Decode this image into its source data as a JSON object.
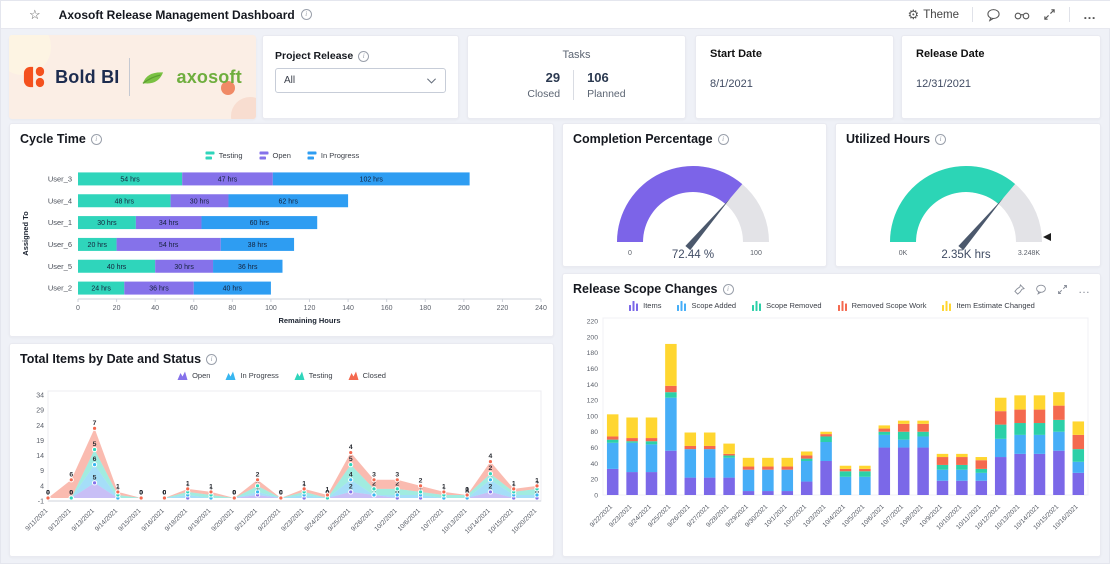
{
  "topbar": {
    "title": "Axosoft Release Management Dashboard",
    "theme_label": "Theme"
  },
  "logo": {
    "boldbi_text": "Bold BI",
    "axosoft_text": "axosoft"
  },
  "filters": {
    "project_release_label": "Project Release",
    "project_release_value": "All"
  },
  "kpis": {
    "tasks": {
      "title": "Tasks",
      "closed_value": "29",
      "closed_label": "Closed",
      "planned_value": "106",
      "planned_label": "Planned"
    },
    "start_date": {
      "label": "Start Date",
      "value": "8/1/2021"
    },
    "release_date": {
      "label": "Release Date",
      "value": "12/31/2021"
    }
  },
  "chart_data": [
    {
      "id": "cycle_time",
      "type": "bar",
      "orientation": "horizontal",
      "stacked": true,
      "title": "Cycle Time",
      "categories": [
        "User_3",
        "User_4",
        "User_1",
        "User_6",
        "User_5",
        "User_2"
      ],
      "series": [
        {
          "name": "Testing",
          "color": "#2fd5bb",
          "values": [
            54,
            48,
            30,
            20,
            40,
            24
          ]
        },
        {
          "name": "Open",
          "color": "#8572ea",
          "values": [
            47,
            30,
            34,
            54,
            30,
            36
          ]
        },
        {
          "name": "In Progress",
          "color": "#2e9df2",
          "values": [
            102,
            62,
            60,
            38,
            36,
            40
          ]
        }
      ],
      "value_suffix": " hrs",
      "xlabel": "Remaining Hours",
      "ylabel": "Assigned To",
      "xlim": [
        0,
        240
      ],
      "xtick_step": 20,
      "legend_position": "top",
      "grid": false
    },
    {
      "id": "completion_gauge",
      "type": "gauge",
      "title": "Completion Percentage",
      "value": 72.44,
      "min": 0,
      "max": 100,
      "min_label": "0",
      "max_label": "100",
      "display": "72.44 %",
      "color": "#7c64e8",
      "track_color": "#e3e3e7"
    },
    {
      "id": "utilized_gauge",
      "type": "gauge",
      "title": "Utilized Hours",
      "value": 2.35,
      "min": 0,
      "max": 3.248,
      "min_label": "0K",
      "max_label": "3.248K",
      "display": "2.35K hrs",
      "color": "#2cd5b6",
      "track_color": "#e3e3e7",
      "max_marker": true
    },
    {
      "id": "total_items",
      "type": "area",
      "stacked": true,
      "title": "Total Items by Date and Status",
      "x": [
        "9/11/2021",
        "9/12/2021",
        "9/13/2021",
        "9/14/2021",
        "9/15/2021",
        "9/16/2021",
        "9/18/2021",
        "9/19/2021",
        "9/20/2021",
        "9/21/2021",
        "9/22/2021",
        "9/23/2021",
        "9/24/2021",
        "9/25/2021",
        "9/26/2021",
        "10/2/2021",
        "10/6/2021",
        "10/7/2021",
        "10/13/2021",
        "10/14/2021",
        "10/15/2021",
        "10/20/2021"
      ],
      "series": [
        {
          "name": "Open",
          "color": "#8572ea",
          "values": [
            0,
            0,
            5,
            0,
            0,
            0,
            0,
            0,
            0,
            1,
            0,
            0,
            0,
            2,
            1,
            0,
            0,
            0,
            0,
            2,
            0,
            0
          ]
        },
        {
          "name": "In Progress",
          "color": "#38b6f0",
          "values": [
            0,
            0,
            6,
            0,
            0,
            0,
            1,
            0,
            0,
            1,
            0,
            1,
            0,
            4,
            0,
            1,
            1,
            0,
            0,
            4,
            1,
            1
          ]
        },
        {
          "name": "Testing",
          "color": "#2fd5bb",
          "values": [
            0,
            0,
            5,
            1,
            0,
            0,
            1,
            1,
            0,
            2,
            0,
            1,
            0,
            5,
            2,
            2,
            1,
            1,
            1,
            2,
            1,
            2
          ]
        },
        {
          "name": "Closed",
          "color": "#f4694f",
          "values": [
            0,
            6,
            7,
            1,
            0,
            0,
            1,
            1,
            0,
            2,
            0,
            1,
            1,
            4,
            3,
            3,
            2,
            1,
            0,
            4,
            1,
            1
          ]
        }
      ],
      "ylim": [
        -1,
        34
      ],
      "yticks": [
        -1,
        4,
        9,
        14,
        19,
        24,
        29,
        34
      ],
      "legend_position": "top",
      "grid": false
    },
    {
      "id": "release_scope",
      "type": "bar",
      "orientation": "vertical",
      "stacked": true,
      "title": "Release Scope Changes",
      "categories": [
        "9/22/2021",
        "9/23/2021",
        "9/24/2021",
        "9/25/2021",
        "9/26/2021",
        "9/27/2021",
        "9/28/2021",
        "9/29/2021",
        "9/30/2021",
        "10/1/2021",
        "10/2/2021",
        "10/3/2021",
        "10/4/2021",
        "10/5/2021",
        "10/6/2021",
        "10/7/2021",
        "10/8/2021",
        "10/9/2021",
        "10/10/2021",
        "10/11/2021",
        "10/12/2021",
        "10/13/2021",
        "10/14/2021",
        "10/15/2021",
        "10/16/2021"
      ],
      "series": [
        {
          "name": "Items",
          "color": "#7b68e8",
          "values": [
            33,
            29,
            29,
            56,
            22,
            22,
            22,
            5,
            5,
            5,
            17,
            43,
            0,
            0,
            60,
            60,
            60,
            18,
            18,
            18,
            48,
            52,
            52,
            56,
            28
          ]
        },
        {
          "name": "Scope Added",
          "color": "#46aef7",
          "values": [
            33,
            37,
            35,
            67,
            36,
            36,
            25,
            27,
            27,
            27,
            26,
            24,
            23,
            23,
            16,
            10,
            14,
            14,
            14,
            10,
            23,
            24,
            24,
            24,
            14
          ]
        },
        {
          "name": "Scope Removed",
          "color": "#2cd0a8",
          "values": [
            4,
            2,
            4,
            7,
            0,
            0,
            3,
            0,
            0,
            0,
            3,
            7,
            7,
            7,
            4,
            10,
            6,
            6,
            6,
            5,
            18,
            15,
            15,
            15,
            16
          ]
        },
        {
          "name": "Removed Scope Work",
          "color": "#f4694f",
          "values": [
            4,
            4,
            4,
            8,
            4,
            4,
            2,
            4,
            4,
            4,
            4,
            3,
            3,
            3,
            4,
            10,
            10,
            10,
            10,
            11,
            17,
            17,
            17,
            18,
            18
          ]
        },
        {
          "name": "Item Estimate Changed",
          "color": "#ffd630",
          "values": [
            28,
            26,
            26,
            53,
            17,
            17,
            13,
            11,
            11,
            11,
            5,
            3,
            4,
            4,
            4,
            4,
            4,
            4,
            4,
            4,
            17,
            18,
            18,
            17,
            17
          ]
        }
      ],
      "ylim": [
        0,
        220
      ],
      "ytick_step": 20,
      "legend_position": "top",
      "grid": false
    }
  ]
}
